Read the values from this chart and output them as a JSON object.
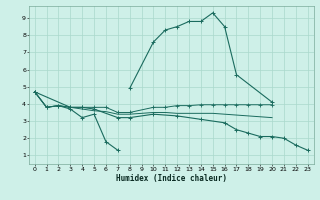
{
  "xlabel": "Humidex (Indice chaleur)",
  "bg_color": "#cef0e8",
  "line_color": "#1a6b5e",
  "grid_color": "#aad8cc",
  "xlim": [
    -0.5,
    23.5
  ],
  "ylim": [
    0.5,
    9.7
  ],
  "xticks": [
    0,
    1,
    2,
    3,
    4,
    5,
    6,
    7,
    8,
    9,
    10,
    11,
    12,
    13,
    14,
    15,
    16,
    17,
    18,
    19,
    20,
    21,
    22,
    23
  ],
  "yticks": [
    1,
    2,
    3,
    4,
    5,
    6,
    7,
    8,
    9
  ],
  "series": [
    {
      "segments": [
        {
          "x": [
            0,
            1,
            2,
            3,
            4,
            5,
            6,
            7
          ],
          "y": [
            4.7,
            3.8,
            3.9,
            3.7,
            3.2,
            3.4,
            1.8,
            1.3
          ]
        },
        {
          "x": [
            8,
            10,
            11,
            12,
            13,
            14,
            15,
            16,
            17,
            20
          ],
          "y": [
            4.9,
            7.6,
            8.3,
            8.5,
            8.8,
            8.8,
            9.3,
            8.5,
            5.7,
            4.1
          ]
        }
      ]
    },
    {
      "segments": [
        {
          "x": [
            0,
            1,
            2,
            3,
            4,
            5,
            6,
            7,
            8,
            10,
            11,
            12,
            13,
            14,
            15,
            16,
            17,
            18,
            19,
            20
          ],
          "y": [
            4.7,
            3.8,
            3.9,
            3.8,
            3.8,
            3.8,
            3.8,
            3.5,
            3.5,
            3.8,
            3.8,
            3.9,
            3.9,
            3.95,
            3.95,
            3.95,
            3.95,
            3.95,
            3.95,
            3.95
          ]
        }
      ]
    },
    {
      "segments": [
        {
          "x": [
            0,
            1,
            2,
            3,
            4,
            5,
            6,
            7,
            8,
            10,
            11,
            12,
            13,
            14,
            15,
            16,
            17,
            18,
            19,
            20
          ],
          "y": [
            4.7,
            3.8,
            3.9,
            3.8,
            3.7,
            3.6,
            3.55,
            3.4,
            3.4,
            3.5,
            3.5,
            3.45,
            3.45,
            3.45,
            3.45,
            3.4,
            3.35,
            3.3,
            3.25,
            3.2
          ]
        }
      ]
    },
    {
      "segments": [
        {
          "x": [
            0,
            3,
            4,
            5,
            7,
            8,
            10,
            12,
            14,
            16,
            17,
            18,
            19,
            20,
            21,
            22,
            23
          ],
          "y": [
            4.7,
            3.8,
            3.8,
            3.7,
            3.2,
            3.2,
            3.4,
            3.3,
            3.1,
            2.9,
            2.5,
            2.3,
            2.1,
            2.1,
            2.0,
            1.6,
            1.3
          ]
        }
      ]
    }
  ]
}
